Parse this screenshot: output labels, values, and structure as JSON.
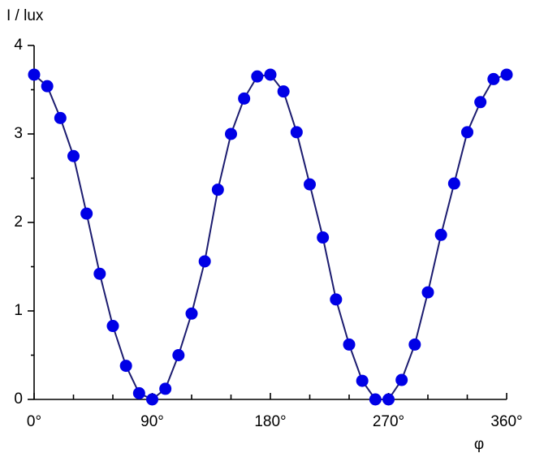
{
  "chart_data": {
    "type": "line",
    "y_label": "I / lux",
    "x_label": "φ",
    "x": [
      0,
      10,
      20,
      30,
      40,
      50,
      60,
      70,
      80,
      90,
      100,
      110,
      120,
      130,
      140,
      150,
      160,
      170,
      180,
      190,
      200,
      210,
      220,
      230,
      240,
      250,
      260,
      270,
      280,
      290,
      300,
      310,
      320,
      330,
      340,
      350,
      360
    ],
    "series": [
      {
        "color": "#0000e6",
        "line_color": "#1c1c70",
        "values": [
          3.67,
          3.54,
          3.18,
          2.75,
          2.1,
          1.42,
          0.83,
          0.38,
          0.07,
          0,
          0.12,
          0.5,
          0.97,
          1.56,
          2.37,
          3.0,
          3.4,
          3.65,
          3.67,
          3.48,
          3.02,
          2.43,
          1.83,
          1.13,
          0.62,
          0.21,
          0,
          0,
          0.22,
          0.62,
          1.21,
          1.86,
          2.44,
          3.02,
          3.36,
          3.62,
          3.67
        ]
      }
    ],
    "xlim": [
      0,
      360
    ],
    "ylim": [
      0,
      4
    ],
    "xticks": [
      {
        "value": 0,
        "label": "0°"
      },
      {
        "value": 90,
        "label": "90°"
      },
      {
        "value": 180,
        "label": "180°"
      },
      {
        "value": 270,
        "label": "270°"
      },
      {
        "value": 360,
        "label": "360°"
      }
    ],
    "xminor_ticks": [
      30,
      60,
      120,
      150,
      210,
      240,
      300,
      330
    ],
    "yticks": [
      0,
      1,
      2,
      3,
      4
    ],
    "yminor_ticks": [
      0.5,
      1.5,
      2.5,
      3.5
    ],
    "grid": false
  }
}
